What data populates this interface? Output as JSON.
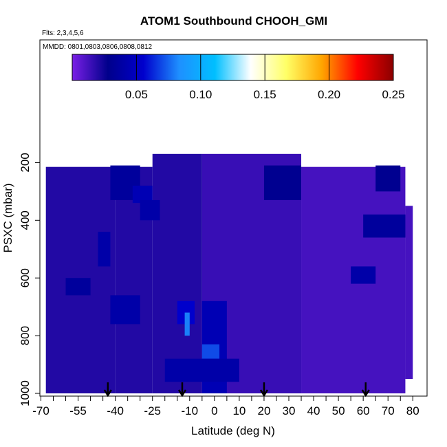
{
  "chart_data": {
    "type": "heatmap",
    "title": "ATOM1 Southbound CHOOH_GMI",
    "subtitle_flights": "Flts: 2,3,4,5,6",
    "subtitle_dates": "MMDD: 0801,0803,0806,0808,0812",
    "xlabel": "Latitude (deg N)",
    "ylabel": "PSXC (mbar)",
    "x_ticks": [
      "-70",
      "-55",
      "-40",
      "-25",
      "-10",
      "0",
      "10",
      "20",
      "30",
      "40",
      "50",
      "60",
      "70",
      "80"
    ],
    "x_tick_values": [
      -70,
      -55,
      -40,
      -25,
      -10,
      0,
      10,
      20,
      30,
      40,
      50,
      60,
      70,
      80
    ],
    "y_ticks": [
      "200",
      "400",
      "600",
      "800",
      "1000"
    ],
    "y_tick_values": [
      200,
      400,
      600,
      800,
      1000
    ],
    "y_reversed": true,
    "colorbar_ticks": [
      "0.05",
      "0.10",
      "0.15",
      "0.20",
      "0.25"
    ],
    "colorbar_tick_values": [
      0.05,
      0.1,
      0.15,
      0.2,
      0.25
    ],
    "colorbar_range": [
      0.0,
      0.25
    ],
    "colorbar_colors": [
      "#7a1fe6",
      "#00008b",
      "#0000cd",
      "#1e90ff",
      "#00bfff",
      "#ffffff",
      "#ffff66",
      "#ffa500",
      "#ff0000",
      "#8b0000"
    ],
    "flight_marker_latitudes": [
      -43,
      -13,
      20,
      61
    ],
    "heatmap_cells_description_free": true,
    "regions": [
      {
        "lat": [
          -68,
          -40
        ],
        "p": [
          215,
          1000
        ],
        "value": 0.02
      },
      {
        "lat": [
          -40,
          -25
        ],
        "p": [
          215,
          1000
        ],
        "value": 0.02
      },
      {
        "lat": [
          -25,
          -5
        ],
        "p": [
          170,
          1000
        ],
        "value": 0.02
      },
      {
        "lat": [
          -5,
          35
        ],
        "p": [
          170,
          1000
        ],
        "value": 0.015
      },
      {
        "lat": [
          35,
          77
        ],
        "p": [
          215,
          1000
        ],
        "value": 0.012
      },
      {
        "lat": [
          77,
          80
        ],
        "p": [
          350,
          950
        ],
        "value": 0.012
      }
    ],
    "patches": [
      {
        "lat": [
          -42,
          -30
        ],
        "p": [
          210,
          330
        ],
        "value": 0.035
      },
      {
        "lat": [
          -33,
          -25
        ],
        "p": [
          280,
          340
        ],
        "value": 0.045
      },
      {
        "lat": [
          -30,
          -22
        ],
        "p": [
          330,
          400
        ],
        "value": 0.04
      },
      {
        "lat": [
          -47,
          -42
        ],
        "p": [
          440,
          560
        ],
        "value": 0.04
      },
      {
        "lat": [
          -42,
          -30
        ],
        "p": [
          660,
          760
        ],
        "value": 0.04
      },
      {
        "lat": [
          -15,
          -8
        ],
        "p": [
          680,
          760
        ],
        "value": 0.055
      },
      {
        "lat": [
          -12,
          -10
        ],
        "p": [
          720,
          800
        ],
        "value": 0.08
      },
      {
        "lat": [
          -5,
          5
        ],
        "p": [
          680,
          1000
        ],
        "value": 0.045
      },
      {
        "lat": [
          -5,
          2
        ],
        "p": [
          830,
          880
        ],
        "value": 0.07
      },
      {
        "lat": [
          -20,
          10
        ],
        "p": [
          880,
          960
        ],
        "value": 0.04
      },
      {
        "lat": [
          20,
          35
        ],
        "p": [
          210,
          330
        ],
        "value": 0.03
      },
      {
        "lat": [
          60,
          77
        ],
        "p": [
          380,
          460
        ],
        "value": 0.035
      },
      {
        "lat": [
          55,
          65
        ],
        "p": [
          560,
          620
        ],
        "value": 0.04
      },
      {
        "lat": [
          65,
          75
        ],
        "p": [
          210,
          300
        ],
        "value": 0.03
      },
      {
        "lat": [
          -60,
          -50
        ],
        "p": [
          600,
          660
        ],
        "value": 0.035
      }
    ]
  }
}
